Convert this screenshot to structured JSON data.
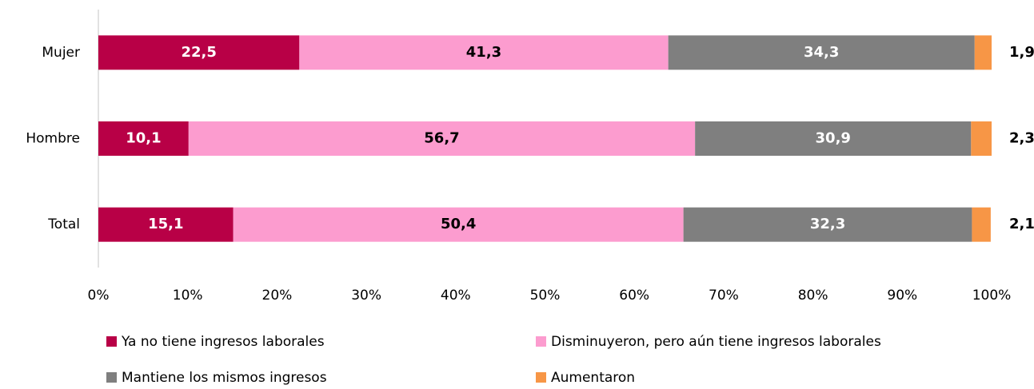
{
  "chart_data": {
    "type": "stacked_barh",
    "categories": [
      "Mujer",
      "Hombre",
      "Total"
    ],
    "series": [
      {
        "name": "Ya no tiene ingresos laborales",
        "color": "#b80046",
        "values": [
          22.5,
          10.1,
          15.1
        ],
        "value_labels": [
          "22,5",
          "10,1",
          "15,1"
        ]
      },
      {
        "name": "Disminuyeron, pero aún tiene ingresos laborales",
        "color": "#fc9ccf",
        "values": [
          41.3,
          56.7,
          50.4
        ],
        "value_labels": [
          "41,3",
          "56,7",
          "50,4"
        ]
      },
      {
        "name": "Mantiene los mismos ingresos",
        "color": "#7f7f7f",
        "values": [
          34.3,
          30.9,
          32.3
        ],
        "value_labels": [
          "34,3",
          "30,9",
          "32,3"
        ]
      },
      {
        "name": "Aumentaron",
        "color": "#f79646",
        "values": [
          1.9,
          2.3,
          2.1
        ],
        "value_labels": [
          "1,9",
          "2,3",
          "2,1"
        ]
      }
    ],
    "xlim": [
      0,
      100
    ],
    "xticks": [
      {
        "value": 0,
        "label": "0%"
      },
      {
        "value": 10,
        "label": "10%"
      },
      {
        "value": 20,
        "label": "20%"
      },
      {
        "value": 30,
        "label": "30%"
      },
      {
        "value": 40,
        "label": "40%"
      },
      {
        "value": 50,
        "label": "50%"
      },
      {
        "value": 60,
        "label": "60%"
      },
      {
        "value": 70,
        "label": "70%"
      },
      {
        "value": 80,
        "label": "80%"
      },
      {
        "value": 90,
        "label": "90%"
      },
      {
        "value": 100,
        "label": "100%"
      }
    ],
    "legend": "bottom"
  }
}
